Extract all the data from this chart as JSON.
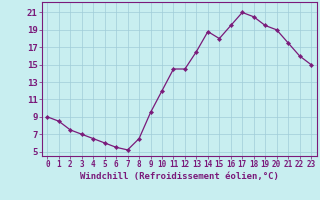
{
  "x": [
    0,
    1,
    2,
    3,
    4,
    5,
    6,
    7,
    8,
    9,
    10,
    11,
    12,
    13,
    14,
    15,
    16,
    17,
    18,
    19,
    20,
    21,
    22,
    23
  ],
  "y": [
    9.0,
    8.5,
    7.5,
    7.0,
    6.5,
    6.0,
    5.5,
    5.2,
    6.5,
    9.5,
    12.0,
    14.5,
    14.5,
    16.5,
    18.8,
    18.0,
    19.5,
    21.0,
    20.5,
    19.5,
    19.0,
    17.5,
    16.0,
    15.0
  ],
  "line_color": "#7a1a7a",
  "marker_color": "#7a1a7a",
  "bg_color": "#c8eef0",
  "grid_color": "#a0ccd8",
  "xlabel": "Windchill (Refroidissement éolien,°C)",
  "ylabel_ticks": [
    5,
    7,
    9,
    11,
    13,
    15,
    17,
    19,
    21
  ],
  "xtick_labels": [
    "0",
    "1",
    "2",
    "3",
    "4",
    "5",
    "6",
    "7",
    "8",
    "9",
    "10",
    "11",
    "12",
    "13",
    "14",
    "15",
    "16",
    "17",
    "18",
    "19",
    "20",
    "21",
    "22",
    "23"
  ],
  "xlim": [
    -0.5,
    23.5
  ],
  "ylim": [
    4.5,
    22.2
  ],
  "tick_color": "#7a1a7a",
  "label_color": "#7a1a7a",
  "font_size_xlabel": 6.5,
  "font_size_ytick": 6.5,
  "font_size_xtick": 5.5
}
